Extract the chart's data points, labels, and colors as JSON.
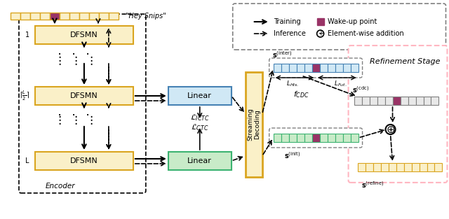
{
  "fig_width": 6.4,
  "fig_height": 3.13,
  "dpi": 100,
  "colors": {
    "yellow_box": "#F5DEB3",
    "yellow_border": "#DAA520",
    "yellow_light": "#FAF0C8",
    "blue_box": "#ADD8E6",
    "blue_border": "#4682B4",
    "blue_light": "#D0E8F5",
    "green_box": "#90EE90",
    "green_border": "#3CB371",
    "green_light": "#C8EBC8",
    "gray_box": "#D3D3D3",
    "gray_border": "#808080",
    "purple": "#800080",
    "orange_border": "#DAA520",
    "pink_dashed": "#FFB6C1",
    "white": "#FFFFFF",
    "black": "#000000",
    "wake_up_purple": "#993366"
  },
  "encoder_label": "Encoder",
  "streaming_label": "Streaming\nDecoding",
  "refinement_label": "Refinement Stage"
}
